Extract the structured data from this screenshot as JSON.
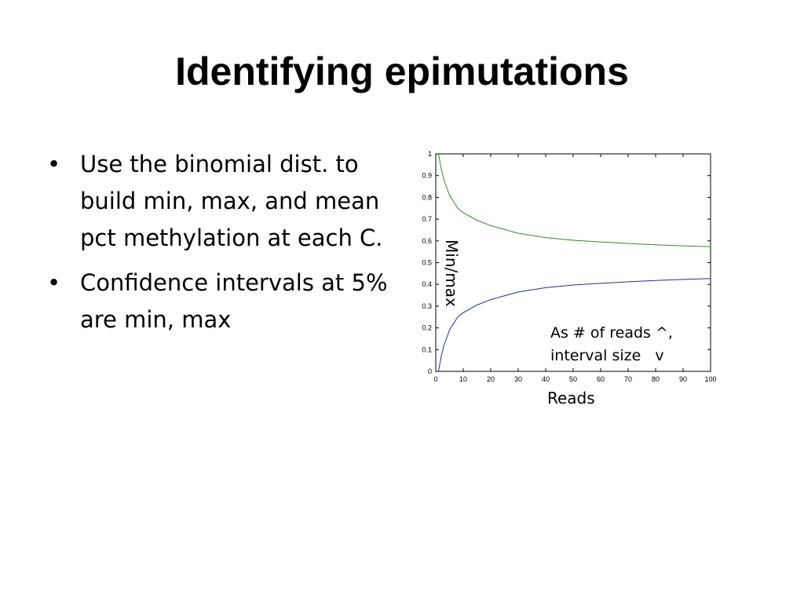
{
  "slide": {
    "title": "Identifying epimutations",
    "bullets": [
      {
        "text": "Use the binomial dist. to build min, max, and mean pct methylation at each C."
      },
      {
        "text": "Confidence intervals at 5% are min, max"
      }
    ],
    "bullet_glyph": "•"
  },
  "chart_data": {
    "type": "line",
    "xlabel": "Reads",
    "ylabel": "Min/max",
    "xlim": [
      0,
      100
    ],
    "ylim": [
      0,
      1
    ],
    "xticks": [
      "0",
      "10",
      "20",
      "30",
      "40",
      "50",
      "60",
      "70",
      "80",
      "90",
      "100"
    ],
    "yticks": [
      "0",
      "0.1",
      "0.2",
      "0.3",
      "0.4",
      "0.5",
      "0.6",
      "0.7",
      "0.8",
      "0.9",
      "1"
    ],
    "grid": false,
    "annotation_lines": [
      "As # of reads ^,",
      "interval size   v"
    ],
    "x": [
      1,
      2,
      3,
      5,
      8,
      10,
      15,
      20,
      30,
      40,
      50,
      60,
      70,
      80,
      90,
      100
    ],
    "series": [
      {
        "color": "#2e8b2e",
        "values": [
          1.0,
          0.93,
          0.88,
          0.81,
          0.75,
          0.73,
          0.695,
          0.67,
          0.635,
          0.615,
          0.603,
          0.595,
          0.588,
          0.582,
          0.577,
          0.573
        ]
      },
      {
        "color": "#2b2b9e",
        "values": [
          0.0,
          0.07,
          0.12,
          0.19,
          0.25,
          0.27,
          0.305,
          0.33,
          0.365,
          0.385,
          0.397,
          0.405,
          0.412,
          0.418,
          0.423,
          0.427
        ]
      }
    ]
  }
}
